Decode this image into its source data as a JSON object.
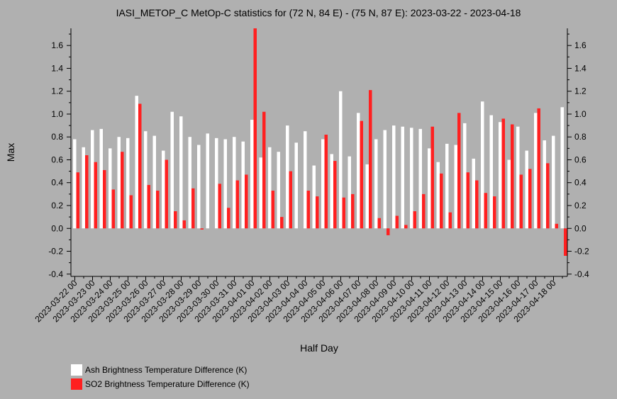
{
  "chart_data": {
    "type": "bar",
    "title": "IASI_METOP_C MetOp-C statistics for (72 N, 84 E) - (75 N, 87 E): 2023-03-22 - 2023-04-18",
    "xlabel": "Half Day",
    "ylabel": "Max",
    "ylim": [
      -0.42,
      1.75
    ],
    "yticks": [
      "-0.4",
      "-0.2",
      "0.0",
      "0.2",
      "0.4",
      "0.6",
      "0.8",
      "1.0",
      "1.2",
      "1.4",
      "1.6"
    ],
    "tick_labels": [
      "2023-03-22 00",
      "2023-03-23 00",
      "2023-03-24 00",
      "2023-03-25 00",
      "2023-03-26 00",
      "2023-03-27 00",
      "2023-03-28 00",
      "2023-03-29 00",
      "2023-03-30 00",
      "2023-03-31 00",
      "2023-04-01 00",
      "2023-04-02 00",
      "2023-04-03 00",
      "2023-04-04 00",
      "2023-04-05 00",
      "2023-04-06 00",
      "2023-04-07 00",
      "2023-04-08 00",
      "2023-04-09 00",
      "2023-04-10 00",
      "2023-04-11 00",
      "2023-04-12 00",
      "2023-04-13 00",
      "2023-04-14 00",
      "2023-04-15 00",
      "2023-04-16 00",
      "2023-04-17 00",
      "2023-04-18 00"
    ],
    "legend_position": "bottom-left",
    "series": [
      {
        "name": "Ash Brightness Temperature Difference (K)",
        "color": "#ffffff",
        "values": [
          0.78,
          0.71,
          0.86,
          0.87,
          0.7,
          0.8,
          0.79,
          1.16,
          0.85,
          0.81,
          0.68,
          1.02,
          0.98,
          0.8,
          0.73,
          0.83,
          0.79,
          0.78,
          0.8,
          0.76,
          0.95,
          0.62,
          0.71,
          0.67,
          0.9,
          0.75,
          0.85,
          0.55,
          0.78,
          0.65,
          1.2,
          0.63,
          1.01,
          0.56,
          0.78,
          0.86,
          0.9,
          0.89,
          0.88,
          0.87,
          0.7,
          0.58,
          0.74,
          0.73,
          0.92,
          0.61,
          1.11,
          0.99,
          0.93,
          0.6,
          0.89,
          0.68,
          1.01,
          0.77,
          0.81,
          1.06
        ]
      },
      {
        "name": "SO2 Brightness Temperature Difference (K)",
        "color": "#ff2020",
        "values": [
          0.49,
          0.64,
          0.58,
          0.51,
          0.34,
          0.67,
          0.29,
          1.09,
          0.38,
          0.33,
          0.6,
          0.15,
          0.07,
          0.35,
          -0.01,
          0.0,
          0.39,
          0.18,
          0.42,
          0.47,
          1.75,
          1.02,
          0.33,
          0.1,
          0.5,
          0.0,
          0.33,
          0.28,
          0.82,
          0.59,
          0.27,
          0.3,
          0.94,
          1.21,
          0.09,
          -0.06,
          0.11,
          0.03,
          0.15,
          0.3,
          0.89,
          0.48,
          0.14,
          1.01,
          0.49,
          0.42,
          0.31,
          0.28,
          0.96,
          0.91,
          0.47,
          0.52,
          1.05,
          0.57,
          0.04,
          -0.24
        ]
      }
    ]
  }
}
